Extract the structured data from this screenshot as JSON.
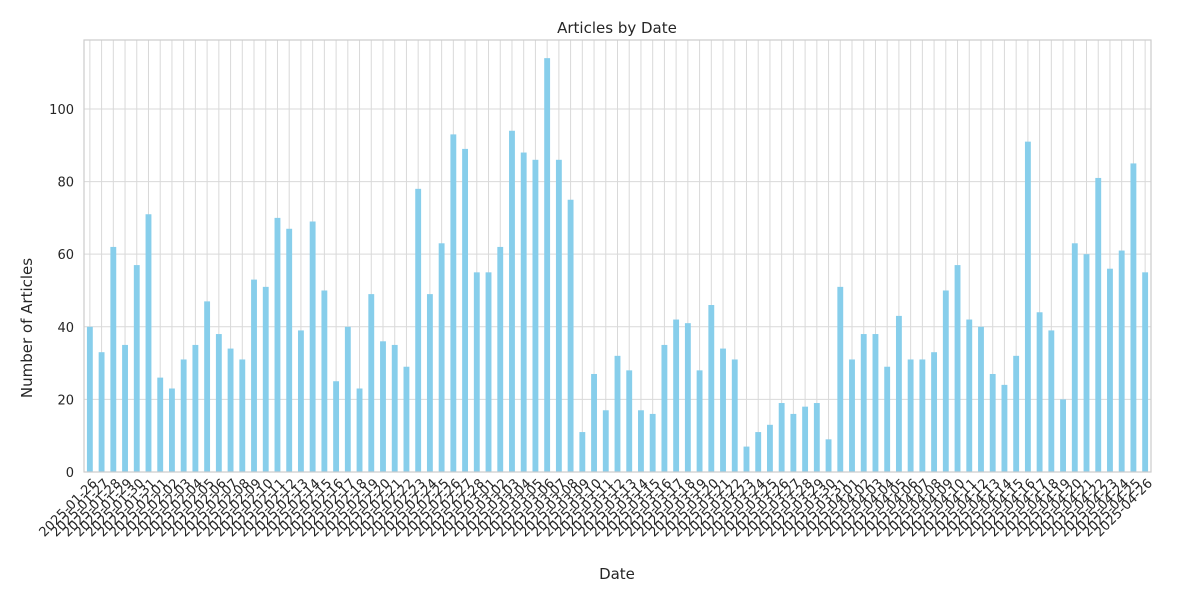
{
  "chart_data": {
    "type": "bar",
    "title": "Articles by Date",
    "xlabel": "Date",
    "ylabel": "Number of Articles",
    "ylim": [
      0,
      119
    ],
    "yticks": [
      0,
      20,
      40,
      60,
      80,
      100
    ],
    "grid": true,
    "bar_color": "#87ceeb",
    "categories": [
      "2025-01-26",
      "2025-01-27",
      "2025-01-28",
      "2025-01-29",
      "2025-01-30",
      "2025-01-31",
      "2025-02-01",
      "2025-02-02",
      "2025-02-03",
      "2025-02-04",
      "2025-02-05",
      "2025-02-06",
      "2025-02-07",
      "2025-02-08",
      "2025-02-09",
      "2025-02-10",
      "2025-02-11",
      "2025-02-12",
      "2025-02-13",
      "2025-02-14",
      "2025-02-15",
      "2025-02-16",
      "2025-02-17",
      "2025-02-18",
      "2025-02-19",
      "2025-02-20",
      "2025-02-21",
      "2025-02-22",
      "2025-02-23",
      "2025-02-24",
      "2025-02-25",
      "2025-02-26",
      "2025-02-27",
      "2025-02-28",
      "2025-03-01",
      "2025-03-02",
      "2025-03-03",
      "2025-03-04",
      "2025-03-05",
      "2025-03-06",
      "2025-03-07",
      "2025-03-08",
      "2025-03-09",
      "2025-03-10",
      "2025-03-11",
      "2025-03-12",
      "2025-03-13",
      "2025-03-14",
      "2025-03-15",
      "2025-03-16",
      "2025-03-17",
      "2025-03-18",
      "2025-03-19",
      "2025-03-20",
      "2025-03-21",
      "2025-03-22",
      "2025-03-23",
      "2025-03-24",
      "2025-03-25",
      "2025-03-26",
      "2025-03-27",
      "2025-03-28",
      "2025-03-29",
      "2025-03-30",
      "2025-03-31",
      "2025-04-01",
      "2025-04-02",
      "2025-04-03",
      "2025-04-04",
      "2025-04-05",
      "2025-04-06",
      "2025-04-07",
      "2025-04-08",
      "2025-04-09",
      "2025-04-10",
      "2025-04-11",
      "2025-04-12",
      "2025-04-13",
      "2025-04-14",
      "2025-04-15",
      "2025-04-16",
      "2025-04-17",
      "2025-04-18",
      "2025-04-19",
      "2025-04-20",
      "2025-04-21",
      "2025-04-22",
      "2025-04-23",
      "2025-04-24",
      "2025-04-25",
      "2025-04-26"
    ],
    "values": [
      40,
      33,
      62,
      35,
      57,
      71,
      26,
      23,
      31,
      35,
      47,
      38,
      34,
      31,
      53,
      51,
      70,
      67,
      39,
      69,
      50,
      25,
      40,
      23,
      49,
      36,
      35,
      29,
      78,
      49,
      63,
      93,
      89,
      55,
      55,
      62,
      94,
      88,
      86,
      114,
      86,
      75,
      11,
      27,
      17,
      32,
      28,
      17,
      16,
      35,
      42,
      41,
      28,
      46,
      34,
      31,
      7,
      11,
      13,
      19,
      16,
      18,
      19,
      9,
      51,
      31,
      38,
      38,
      29,
      43,
      31,
      31,
      33,
      50,
      57,
      42,
      40,
      27,
      24,
      32,
      91,
      44,
      39,
      20,
      63,
      60,
      81,
      56,
      61,
      85,
      55
    ]
  }
}
